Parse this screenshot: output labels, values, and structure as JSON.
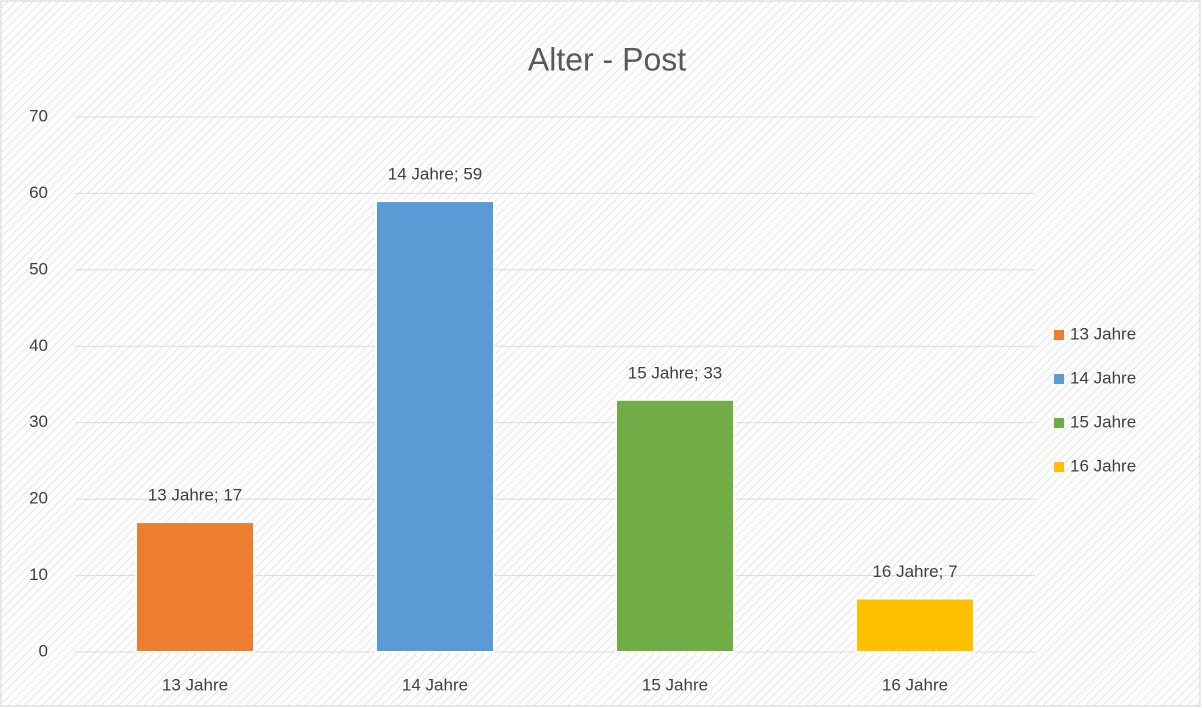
{
  "chart_data": {
    "type": "bar",
    "title": "Alter - Post",
    "categories": [
      "13 Jahre",
      "14 Jahre",
      "15 Jahre",
      "16 Jahre"
    ],
    "values": [
      17,
      59,
      33,
      7
    ],
    "value_labels": [
      "13 Jahre; 17",
      "14 Jahre; 59",
      "15 Jahre; 33",
      "16 Jahre; 7"
    ],
    "colors": [
      "#ed7d31",
      "#5b9bd5",
      "#70ad47",
      "#ffc000"
    ],
    "ylim": [
      0,
      70
    ],
    "yticks": [
      0,
      10,
      20,
      30,
      40,
      50,
      60,
      70
    ],
    "grid": true,
    "legend": "right"
  }
}
